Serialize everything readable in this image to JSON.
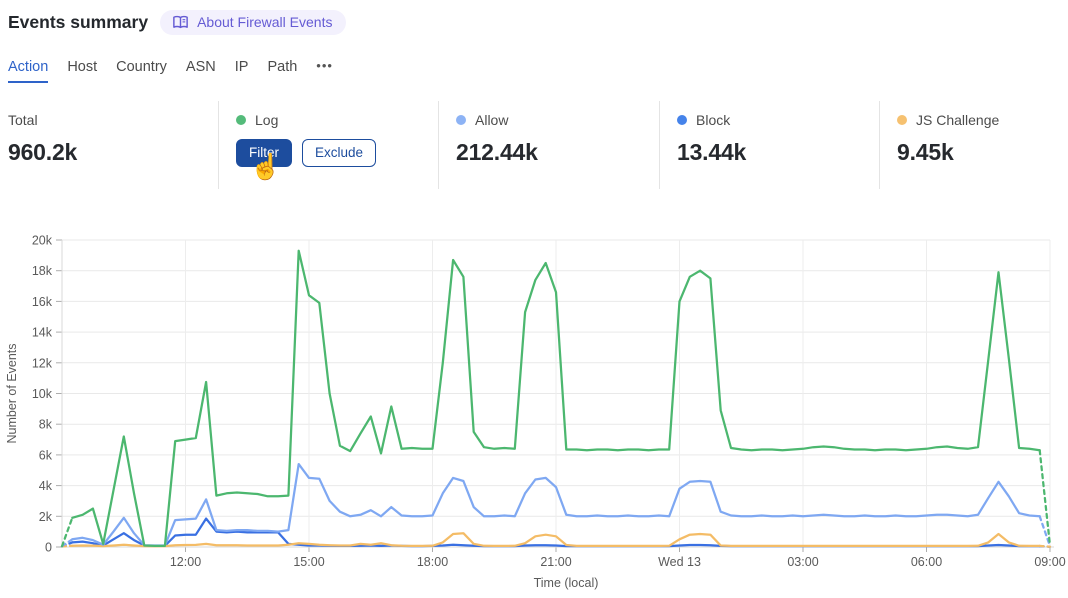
{
  "page": {
    "title": "Events summary",
    "about_label": "About Firewall Events"
  },
  "tabs": {
    "items": [
      {
        "label": "Action",
        "active": true
      },
      {
        "label": "Host",
        "active": false
      },
      {
        "label": "Country",
        "active": false
      },
      {
        "label": "ASN",
        "active": false
      },
      {
        "label": "IP",
        "active": false
      },
      {
        "label": "Path",
        "active": false
      },
      {
        "label": "•••",
        "active": false
      }
    ]
  },
  "stats": {
    "cards": [
      {
        "label": "Total",
        "value": "960.2k"
      },
      {
        "label": "Log",
        "dot_color": "#54bb7a",
        "filter_label": "Filter",
        "exclude_label": "Exclude"
      },
      {
        "label": "Allow",
        "value": "212.44k",
        "dot_color": "#8db3f5"
      },
      {
        "label": "Block",
        "value": "13.44k",
        "dot_color": "#4583ea"
      },
      {
        "label": "JS Challenge",
        "value": "9.45k",
        "dot_color": "#f6c170"
      }
    ]
  },
  "colors": {
    "accent_blue": "#1d4d9e",
    "tab_active": "#2e63c9",
    "about_pill_bg": "#f3f1fd",
    "about_pill_fg": "#655bd4",
    "gridline": "#e9e9e9",
    "axis_line": "#d9d9d9",
    "axis_text": "#5a5a5a"
  },
  "chart_data": {
    "type": "line",
    "xlabel": "Time (local)",
    "ylabel": "Number of Events",
    "ylim": [
      0,
      20000
    ],
    "y_tick_step": 2000,
    "y_tick_labels": [
      "0",
      "2k",
      "4k",
      "6k",
      "8k",
      "10k",
      "12k",
      "14k",
      "16k",
      "18k",
      "20k"
    ],
    "x_tick_labels": [
      "12:00",
      "15:00",
      "18:00",
      "21:00",
      "Wed 13",
      "03:00",
      "06:00",
      "09:00"
    ],
    "x_tick_positions_hours": [
      3,
      6,
      9,
      12,
      15,
      18,
      21,
      24
    ],
    "x_range_hours": [
      0,
      24
    ],
    "interval_minutes": 15,
    "grid": true,
    "dashed_edges": true,
    "legend_position": "stat-cards-above",
    "series": [
      {
        "name": "Log",
        "color": "#4cb76f",
        "values": [
          50,
          1900,
          2100,
          2500,
          200,
          3700,
          7200,
          3500,
          100,
          70,
          70,
          6900,
          7000,
          7100,
          10750,
          3350,
          3500,
          3550,
          3500,
          3450,
          3300,
          3300,
          3350,
          19300,
          16400,
          15900,
          10000,
          6600,
          6250,
          7400,
          8500,
          6100,
          9150,
          6400,
          6450,
          6400,
          6400,
          12000,
          18700,
          17600,
          7500,
          6500,
          6400,
          6450,
          6400,
          15300,
          17400,
          18500,
          16600,
          6350,
          6350,
          6300,
          6350,
          6350,
          6300,
          6350,
          6350,
          6300,
          6350,
          6350,
          16000,
          17600,
          18000,
          17500,
          8900,
          6450,
          6350,
          6300,
          6350,
          6350,
          6300,
          6350,
          6400,
          6500,
          6550,
          6500,
          6400,
          6350,
          6350,
          6300,
          6350,
          6350,
          6300,
          6350,
          6400,
          6500,
          6550,
          6450,
          6400,
          6500,
          12200,
          17900,
          12300,
          6450,
          6400,
          6300,
          100
        ]
      },
      {
        "name": "Allow",
        "color": "#7fa8f2",
        "values": [
          50,
          500,
          600,
          450,
          150,
          1000,
          1900,
          900,
          120,
          100,
          100,
          1750,
          1800,
          1850,
          3100,
          1100,
          1050,
          1100,
          1100,
          1050,
          1050,
          1000,
          1100,
          5400,
          4500,
          4450,
          3000,
          2300,
          2000,
          2100,
          2400,
          2000,
          2600,
          2050,
          2000,
          2000,
          2050,
          3500,
          4500,
          4300,
          2600,
          2000,
          2000,
          2050,
          2000,
          3500,
          4400,
          4500,
          3900,
          2100,
          2000,
          2000,
          2050,
          2000,
          2000,
          2050,
          2000,
          2000,
          2050,
          2000,
          3800,
          4250,
          4300,
          4250,
          2300,
          2050,
          2000,
          2000,
          2050,
          2000,
          2000,
          2050,
          2000,
          2050,
          2100,
          2050,
          2000,
          2000,
          2050,
          2000,
          2000,
          2050,
          2000,
          2000,
          2050,
          2100,
          2100,
          2050,
          2000,
          2100,
          3200,
          4250,
          3300,
          2200,
          2050,
          2000,
          50
        ]
      },
      {
        "name": "Block",
        "color": "#3a70e2",
        "values": [
          30,
          300,
          350,
          250,
          100,
          500,
          900,
          450,
          100,
          70,
          80,
          750,
          800,
          800,
          1850,
          1000,
          950,
          1000,
          950,
          950,
          950,
          950,
          200,
          150,
          100,
          100,
          80,
          70,
          70,
          80,
          100,
          70,
          100,
          70,
          60,
          60,
          70,
          100,
          150,
          120,
          80,
          60,
          60,
          60,
          60,
          100,
          120,
          120,
          100,
          60,
          60,
          60,
          60,
          60,
          60,
          60,
          60,
          60,
          60,
          60,
          100,
          130,
          130,
          120,
          70,
          60,
          60,
          60,
          60,
          60,
          60,
          60,
          60,
          60,
          60,
          60,
          60,
          60,
          60,
          60,
          60,
          60,
          60,
          60,
          60,
          60,
          60,
          60,
          60,
          60,
          100,
          130,
          100,
          60,
          60,
          60,
          20
        ]
      },
      {
        "name": "JS Challenge",
        "color": "#f4bc66",
        "values": [
          40,
          80,
          100,
          90,
          60,
          100,
          150,
          100,
          60,
          50,
          60,
          120,
          130,
          140,
          200,
          120,
          110,
          110,
          100,
          100,
          100,
          100,
          150,
          250,
          200,
          150,
          120,
          100,
          100,
          200,
          150,
          250,
          120,
          80,
          70,
          70,
          80,
          300,
          850,
          900,
          200,
          80,
          70,
          70,
          80,
          250,
          700,
          800,
          700,
          130,
          70,
          70,
          70,
          70,
          70,
          70,
          70,
          70,
          70,
          80,
          500,
          800,
          850,
          800,
          100,
          70,
          70,
          70,
          70,
          70,
          70,
          70,
          70,
          70,
          70,
          70,
          70,
          70,
          70,
          70,
          70,
          70,
          70,
          70,
          70,
          70,
          70,
          70,
          70,
          80,
          300,
          850,
          300,
          80,
          70,
          70,
          20
        ]
      }
    ]
  }
}
